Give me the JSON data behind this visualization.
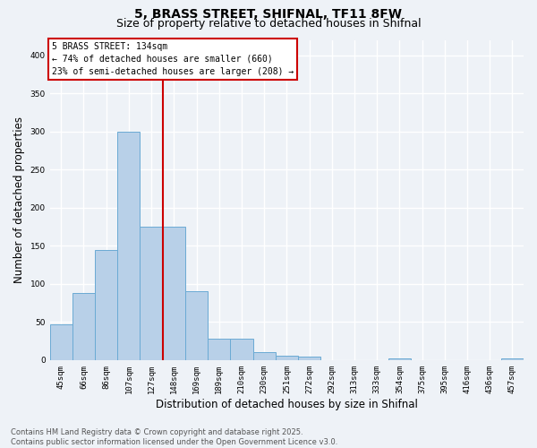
{
  "title_line1": "5, BRASS STREET, SHIFNAL, TF11 8FW",
  "title_line2": "Size of property relative to detached houses in Shifnal",
  "xlabel": "Distribution of detached houses by size in Shifnal",
  "ylabel": "Number of detached properties",
  "categories": [
    "45sqm",
    "66sqm",
    "86sqm",
    "107sqm",
    "127sqm",
    "148sqm",
    "169sqm",
    "189sqm",
    "210sqm",
    "230sqm",
    "251sqm",
    "272sqm",
    "292sqm",
    "313sqm",
    "333sqm",
    "354sqm",
    "375sqm",
    "395sqm",
    "416sqm",
    "436sqm",
    "457sqm"
  ],
  "values": [
    47,
    88,
    145,
    300,
    175,
    175,
    90,
    28,
    28,
    10,
    6,
    4,
    0,
    0,
    0,
    2,
    0,
    0,
    0,
    0,
    2
  ],
  "bar_color": "#b8d0e8",
  "bar_edge_color": "#6aaad4",
  "vline_index": 4.5,
  "vline_color": "#cc0000",
  "annotation_box_text": "5 BRASS STREET: 134sqm\n← 74% of detached houses are smaller (660)\n23% of semi-detached houses are larger (208) →",
  "ylim": [
    0,
    420
  ],
  "yticks": [
    0,
    50,
    100,
    150,
    200,
    250,
    300,
    350,
    400
  ],
  "background_color": "#eef2f7",
  "grid_color": "#ffffff",
  "footnote": "Contains HM Land Registry data © Crown copyright and database right 2025.\nContains public sector information licensed under the Open Government Licence v3.0.",
  "title_fontsize": 10,
  "subtitle_fontsize": 9,
  "tick_fontsize": 6.5,
  "label_fontsize": 8.5,
  "footnote_fontsize": 6.0,
  "annotation_fontsize": 7.0
}
